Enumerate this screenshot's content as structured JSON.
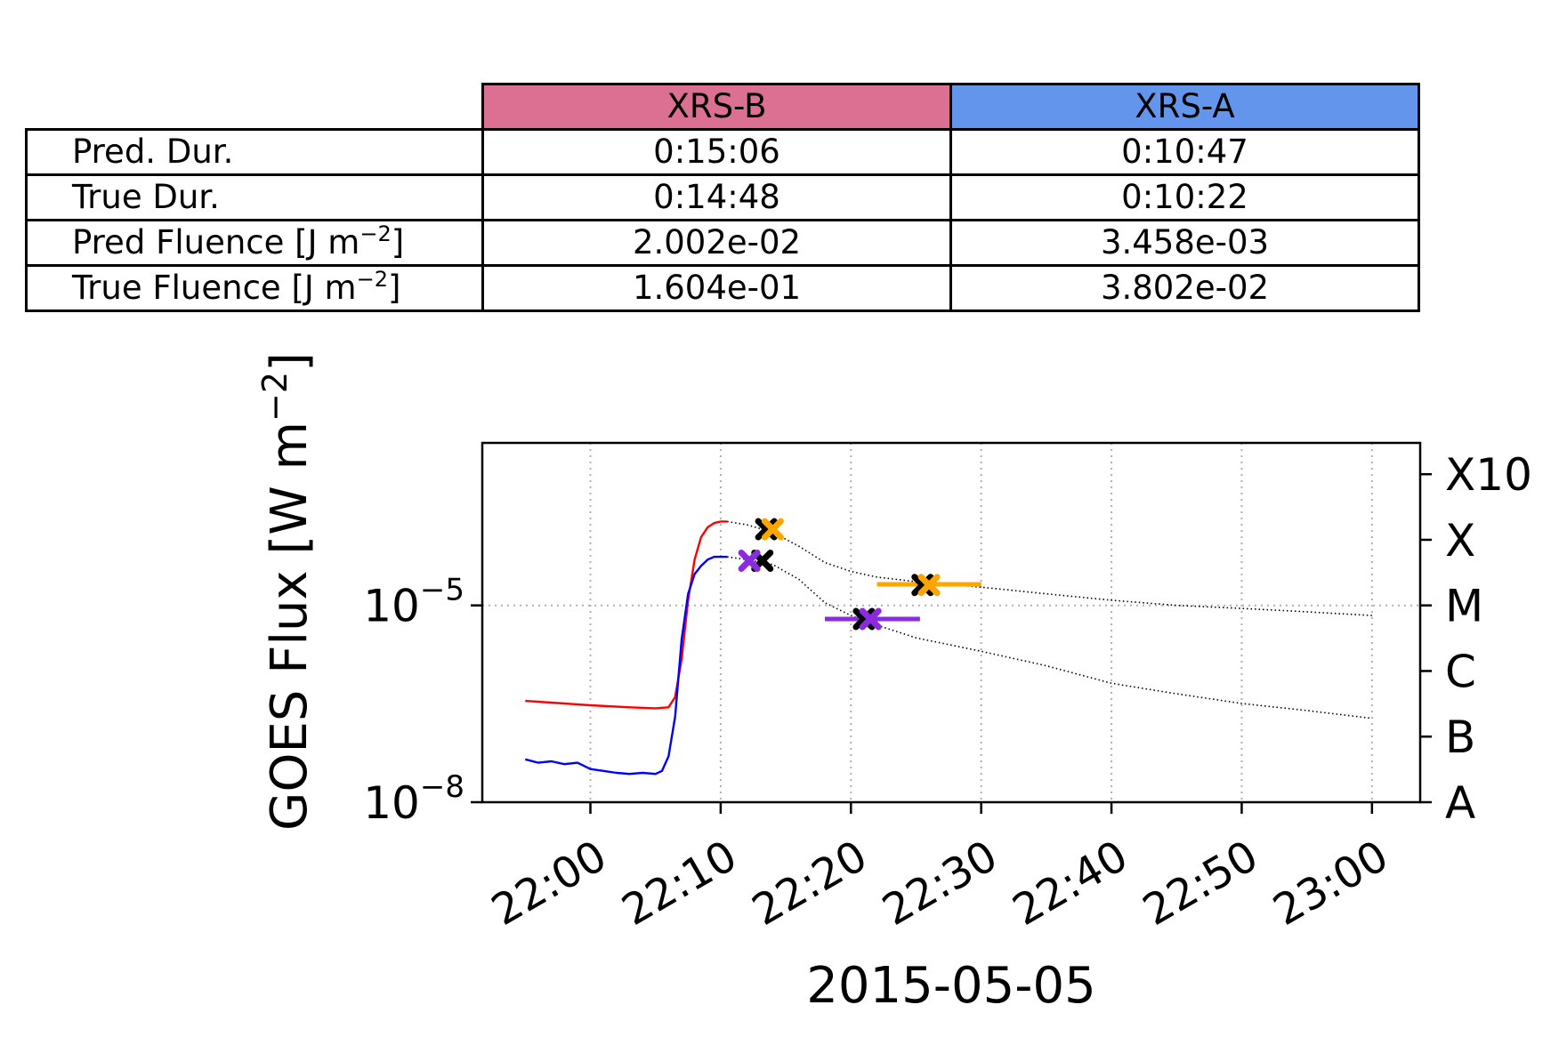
{
  "table": {
    "columns": [
      {
        "label": "XRS-B",
        "color": "#db7093"
      },
      {
        "label": "XRS-A",
        "color": "#6495ed"
      }
    ],
    "rows": [
      {
        "label": "Pred. Dur.",
        "values": [
          "0:15:06",
          "0:10:47"
        ]
      },
      {
        "label": "True Dur.",
        "values": [
          "0:14:48",
          "0:10:22"
        ]
      },
      {
        "label": "Pred Fluence [J m",
        "unit_exp": "−2",
        "unit_close": "]",
        "values": [
          "2.002e-02",
          "3.458e-03"
        ]
      },
      {
        "label": "True Fluence [J m",
        "unit_exp": "−2",
        "unit_close": "]",
        "values": [
          "1.604e-01",
          "3.802e-02"
        ]
      }
    ]
  },
  "chart_data": {
    "type": "line",
    "xlabel": "2015-05-05",
    "ylabel": "GOES Flux [W m",
    "ylabel_exp": "−2",
    "ylabel_close": "]",
    "y_scale": "log",
    "xlim": [
      "21:51.7",
      "23:03.7"
    ],
    "ylim": [
      1e-08,
      0.003
    ],
    "x_ticks": [
      "22:00",
      "22:10",
      "22:20",
      "22:30",
      "22:40",
      "22:50",
      "23:00"
    ],
    "y_ticks": [
      {
        "base": "10",
        "exp": "−8",
        "value": 1e-08
      },
      {
        "base": "10",
        "exp": "−5",
        "value": 1e-05
      }
    ],
    "right_axis_labels": [
      {
        "label": "A",
        "value": 1e-08
      },
      {
        "label": "B",
        "value": 1e-07
      },
      {
        "label": "C",
        "value": 1e-06
      },
      {
        "label": "M",
        "value": 1e-05
      },
      {
        "label": "X",
        "value": 0.0001
      },
      {
        "label": "X10",
        "value": 0.001
      }
    ],
    "grid": {
      "x": true,
      "y_at": 1e-05,
      "style": "dotted"
    },
    "series": [
      {
        "color": "#ff0000",
        "style": "solid",
        "x": [
          "21:55",
          "21:58",
          "22:00",
          "22:03",
          "22:05",
          "22:06",
          "22:06.5",
          "22:07",
          "22:07.5",
          "22:08",
          "22:08.5",
          "22:09",
          "22:09.5",
          "22:10",
          "22:10.5"
        ],
        "y": [
          3.5e-07,
          3.2e-07,
          3e-07,
          2.8e-07,
          2.7e-07,
          2.8e-07,
          4e-07,
          1.5e-06,
          1.2e-05,
          5e-05,
          0.00011,
          0.000155,
          0.00018,
          0.00019,
          0.00019
        ]
      },
      {
        "color": "#0000ff",
        "style": "solid",
        "x": [
          "21:55",
          "21:56",
          "21:57",
          "21:58",
          "21:59",
          "22:00",
          "22:01",
          "22:02",
          "22:03",
          "22:04",
          "22:05",
          "22:05.5",
          "22:06",
          "22:06.5",
          "22:07",
          "22:07.5",
          "22:08",
          "22:08.5",
          "22:09",
          "22:09.5",
          "22:10",
          "22:10.5"
        ],
        "y": [
          4.5e-08,
          4e-08,
          4.2e-08,
          3.8e-08,
          4e-08,
          3.2e-08,
          3e-08,
          2.8e-08,
          2.7e-08,
          2.8e-08,
          2.7e-08,
          3e-08,
          5e-08,
          2e-07,
          3e-06,
          1.5e-05,
          3e-05,
          4e-05,
          5e-05,
          5.5e-05,
          5.5e-05,
          5.5e-05
        ]
      },
      {
        "color": "#000000",
        "style": "dotted",
        "x": [
          "22:10.5",
          "22:12",
          "22:14",
          "22:16",
          "22:18",
          "22:20",
          "22:22",
          "22:25",
          "22:30",
          "22:35",
          "22:40",
          "22:45",
          "22:50",
          "22:55",
          "23:00"
        ],
        "y": [
          0.00019,
          0.00017,
          0.00013,
          8e-05,
          4.5e-05,
          3.3e-05,
          2.7e-05,
          2.3e-05,
          1.9e-05,
          1.5e-05,
          1.2e-05,
          1e-05,
          9e-06,
          8e-06,
          7e-06
        ]
      },
      {
        "color": "#000000",
        "style": "dotted",
        "x": [
          "22:10.5",
          "22:12",
          "22:14",
          "22:16",
          "22:18",
          "22:20",
          "22:22",
          "22:25",
          "22:30",
          "22:35",
          "22:40",
          "22:45",
          "22:50",
          "22:55",
          "23:00"
        ],
        "y": [
          5.5e-05,
          5e-05,
          4.2e-05,
          2.5e-05,
          1.1e-05,
          7e-06,
          5e-06,
          3.2e-06,
          2e-06,
          1.2e-06,
          6.5e-07,
          4.5e-07,
          3.2e-07,
          2.5e-07,
          1.9e-07
        ]
      }
    ],
    "markers": [
      {
        "x": "22:13.5",
        "y": 0.000145,
        "color": "#000000",
        "shape": "x"
      },
      {
        "x": "22:14",
        "y": 0.000145,
        "color": "#ffa500",
        "shape": "x"
      },
      {
        "x": "22:13.2",
        "y": 4.8e-05,
        "color": "#000000",
        "shape": "x"
      },
      {
        "x": "22:12.2",
        "y": 4.8e-05,
        "color": "#8a2be2",
        "shape": "x"
      },
      {
        "x": "22:21",
        "y": 6.2e-06,
        "color": "#000000",
        "shape": "x"
      },
      {
        "x": "22:21.5",
        "y": 6.2e-06,
        "color": "#8a2be2",
        "shape": "x"
      },
      {
        "x": "22:25.5",
        "y": 2.05e-05,
        "color": "#000000",
        "shape": "x"
      },
      {
        "x": "22:26",
        "y": 2.05e-05,
        "color": "#ffa500",
        "shape": "x"
      }
    ],
    "error_bars": [
      {
        "x0": "22:22",
        "x1": "22:30",
        "y": 2.1e-05,
        "color": "#ffa500"
      },
      {
        "x0": "22:18",
        "x1": "22:25.3",
        "y": 6.2e-06,
        "color": "#8a2be2"
      }
    ]
  }
}
